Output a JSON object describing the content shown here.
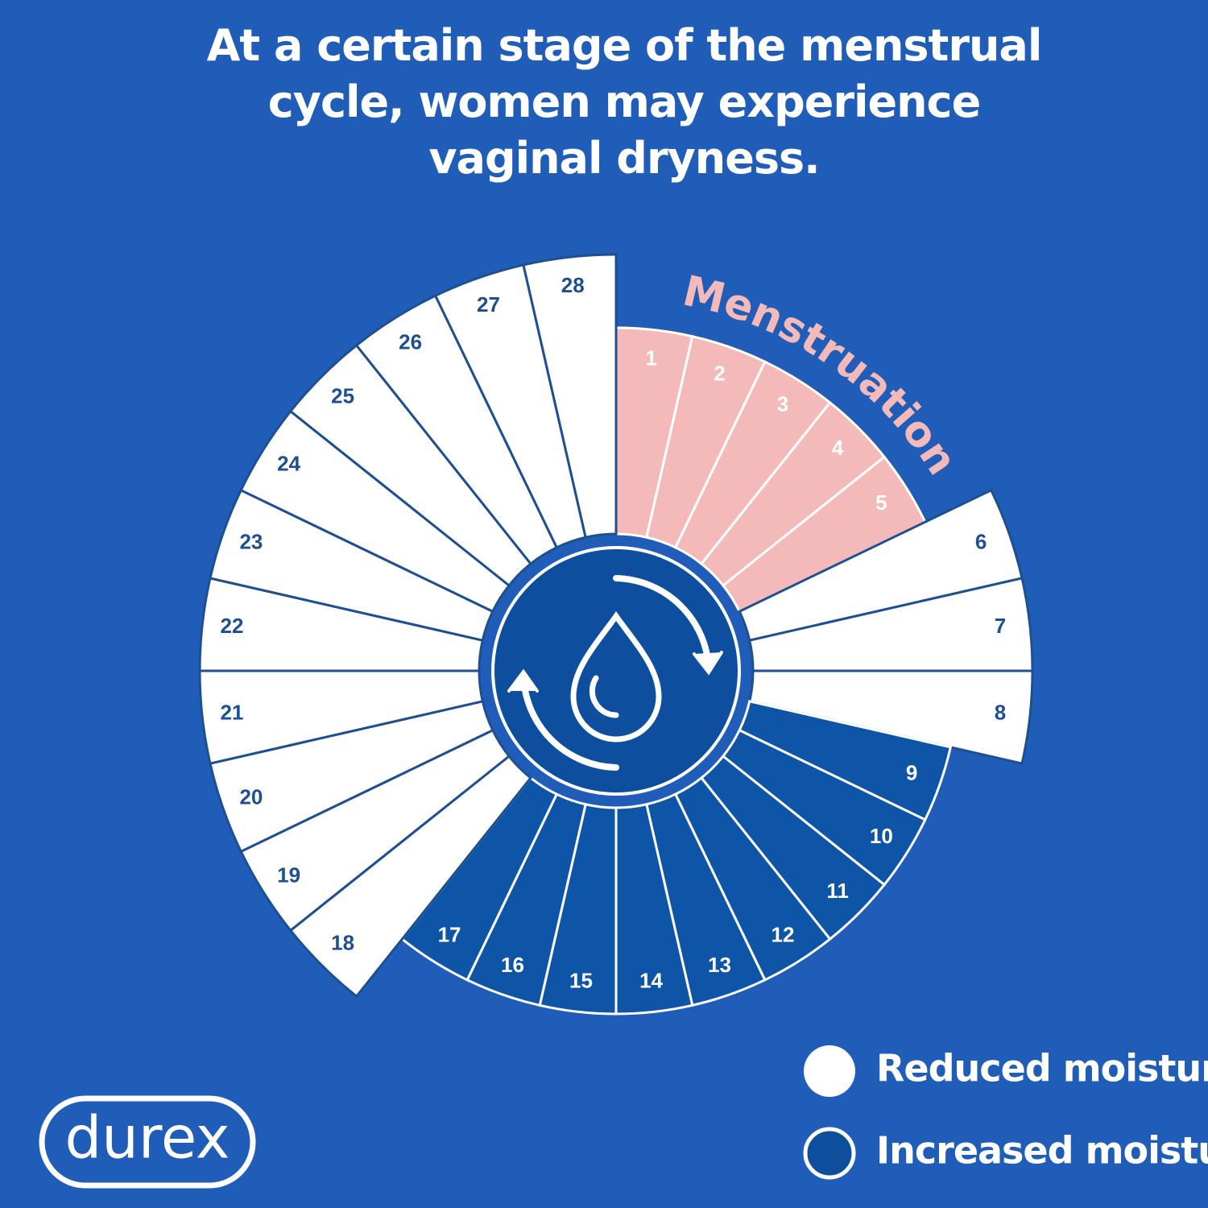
{
  "title": "At a certain stage of the menstrual cycle, women may experience vaginal dryness.",
  "arc_label": "Menstruation",
  "days": [
    {
      "label": "1",
      "color": "#f4b9b9"
    },
    {
      "label": "2",
      "color": "#f4b9b9"
    },
    {
      "label": "3",
      "color": "#f4b9b9"
    },
    {
      "label": "4",
      "color": "#f4b9b9"
    },
    {
      "label": "5",
      "color": "#f4b9b9"
    },
    {
      "label": "6",
      "color": "#ffffff"
    },
    {
      "label": "7",
      "color": "#ffffff"
    },
    {
      "label": "8",
      "color": "#ffffff"
    },
    {
      "label": "9",
      "color": "#0e55a8"
    },
    {
      "label": "10",
      "color": "#0e55a8"
    },
    {
      "label": "11",
      "color": "#0e55a8"
    },
    {
      "label": "12",
      "color": "#0e55a8"
    },
    {
      "label": "13",
      "color": "#0e55a8"
    },
    {
      "label": "14",
      "color": "#0e55a8"
    },
    {
      "label": "15",
      "color": "#0e55a8"
    },
    {
      "label": "16",
      "color": "#0e55a8"
    },
    {
      "label": "17",
      "color": "#0e55a8"
    },
    {
      "label": "18",
      "color": "#ffffff"
    },
    {
      "label": "19",
      "color": "#ffffff"
    },
    {
      "label": "20",
      "color": "#ffffff"
    },
    {
      "label": "21",
      "color": "#ffffff"
    },
    {
      "label": "22",
      "color": "#ffffff"
    },
    {
      "label": "23",
      "color": "#ffffff"
    },
    {
      "label": "24",
      "color": "#ffffff"
    },
    {
      "label": "25",
      "color": "#ffffff"
    },
    {
      "label": "26",
      "color": "#ffffff"
    },
    {
      "label": "27",
      "color": "#ffffff"
    },
    {
      "label": "28",
      "color": "#ffffff"
    }
  ],
  "legend": [
    {
      "label": "Reduced moisture"
    },
    {
      "label": "Increased moisture"
    }
  ],
  "logo": "durex"
}
